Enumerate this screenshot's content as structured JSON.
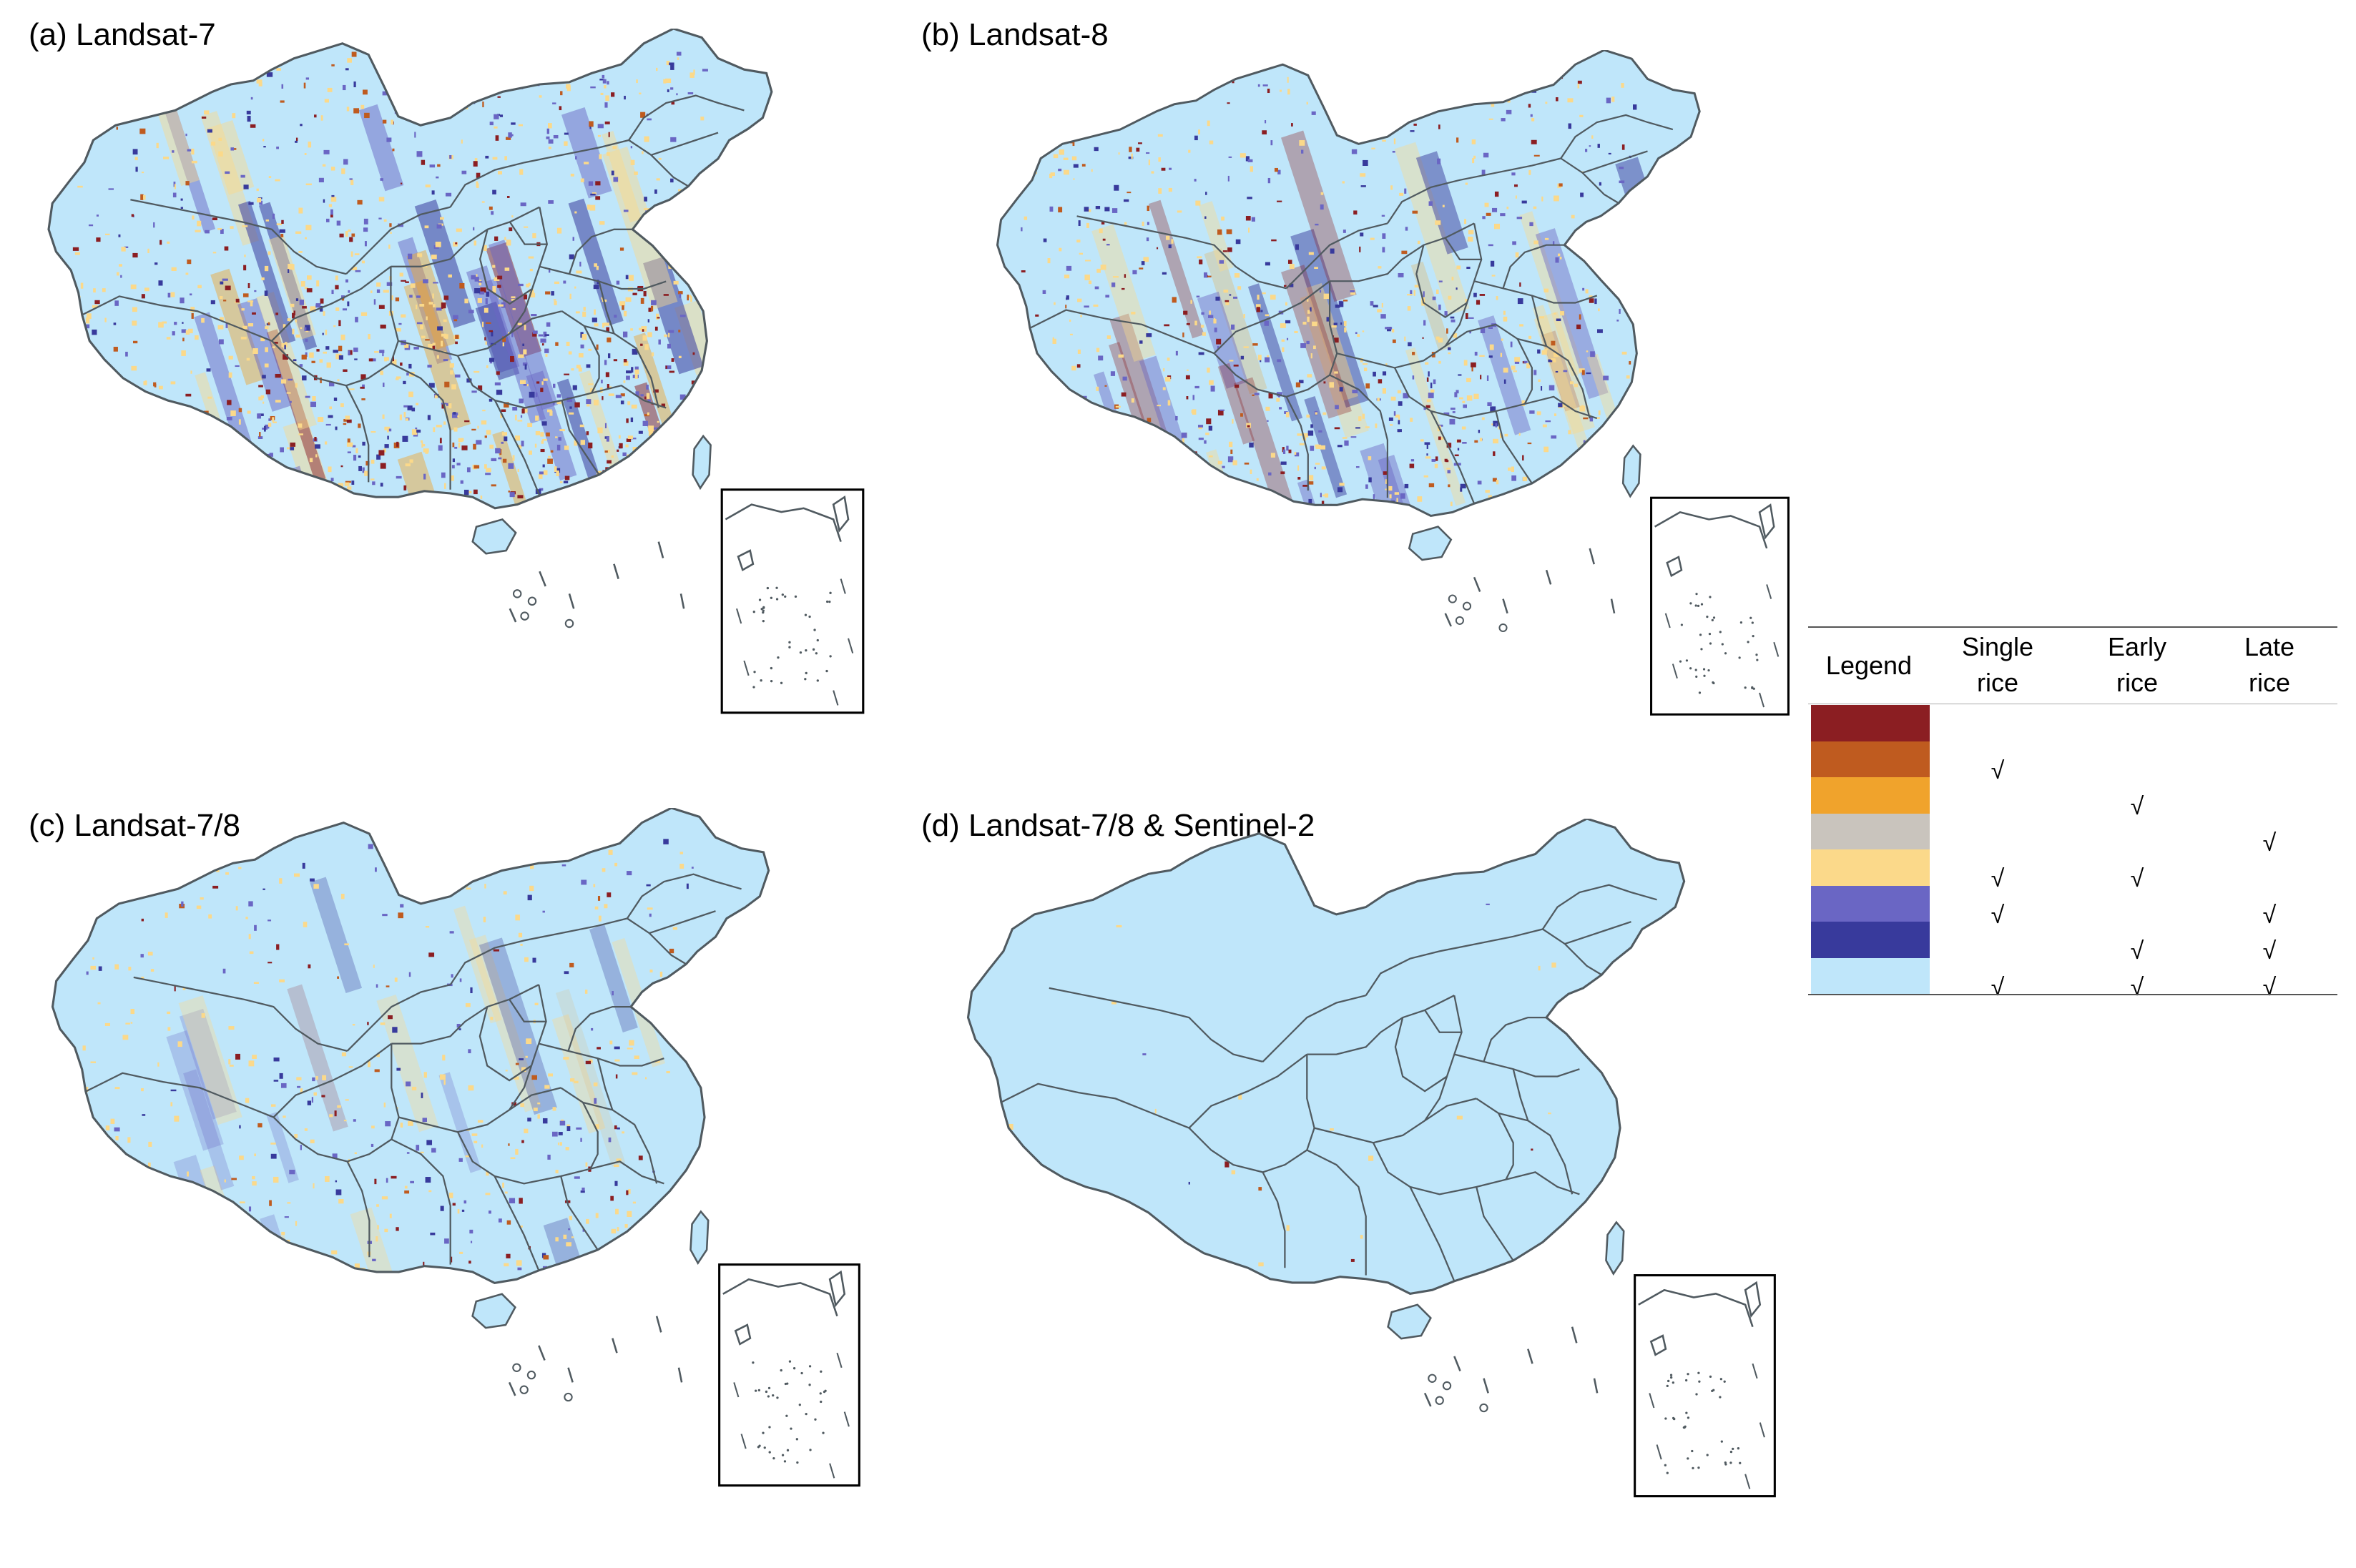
{
  "panels": [
    {
      "id": "a",
      "title": "(a) Landsat-7"
    },
    {
      "id": "b",
      "title": "(b) Landsat-8"
    },
    {
      "id": "c",
      "title": "(c) Landsat-7/8"
    },
    {
      "id": "d",
      "title": "(d) Landsat-7/8 & Sentinel-2"
    }
  ],
  "legend": {
    "header": {
      "legend": "Legend",
      "single_l1": "Single",
      "single_l2": "rice",
      "early_l1": "Early",
      "early_l2": "rice",
      "late_l1": "Late",
      "late_l2": "rice"
    },
    "check_mark": "√",
    "rows": [
      {
        "color": "#8b1e22",
        "single": false,
        "early": false,
        "late": false
      },
      {
        "color": "#bf5b1f",
        "single": true,
        "early": false,
        "late": false
      },
      {
        "color": "#f0a32c",
        "single": false,
        "early": true,
        "late": false
      },
      {
        "color": "#c9c4bd",
        "single": false,
        "early": false,
        "late": true
      },
      {
        "color": "#fbd98a",
        "single": true,
        "early": true,
        "late": false
      },
      {
        "color": "#6a66c4",
        "single": true,
        "early": false,
        "late": true
      },
      {
        "color": "#383a9c",
        "single": false,
        "early": true,
        "late": true
      },
      {
        "color": "#bfe6fa",
        "single": true,
        "early": true,
        "late": true
      }
    ]
  },
  "colors": {
    "base": "#bfe6fa",
    "border": "#505a60"
  }
}
